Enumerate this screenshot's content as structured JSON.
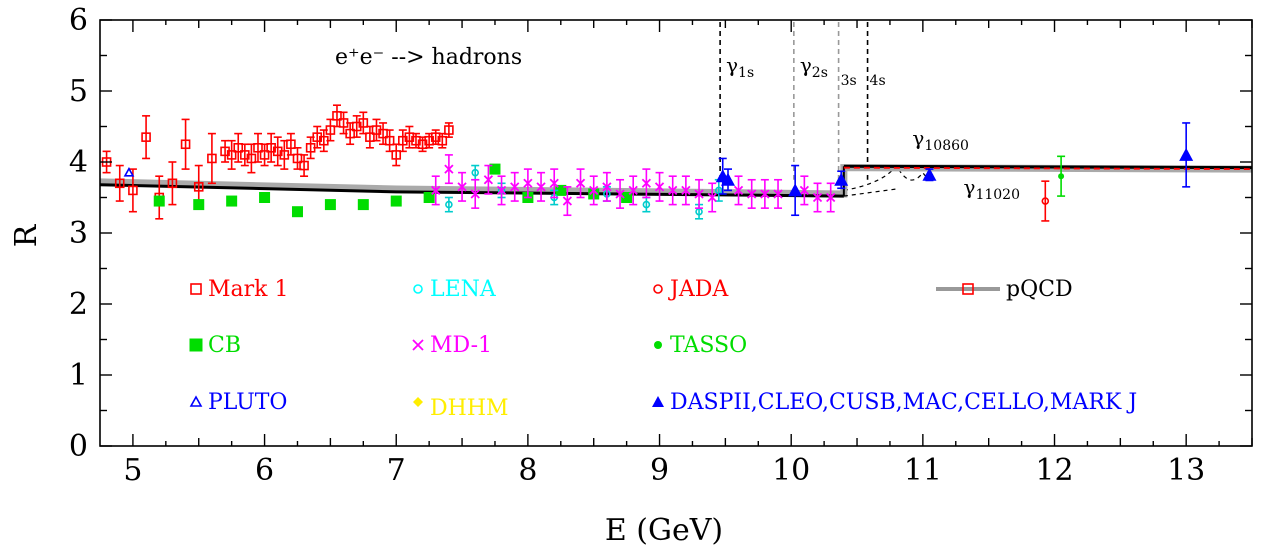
{
  "chart_data": {
    "type": "scatter",
    "title": "",
    "xlabel": "E (GeV)",
    "ylabel": "R",
    "xlim": [
      4.75,
      13.5
    ],
    "ylim": [
      0,
      6
    ],
    "x_ticks": [
      5,
      6,
      7,
      8,
      9,
      10,
      11,
      12,
      13
    ],
    "y_ticks": [
      0,
      1,
      2,
      3,
      4,
      5,
      6
    ],
    "grid": false,
    "legend_placement": "inside-bottom",
    "process_label": "e⁺e⁻  -->  hadrons",
    "annotations": [
      {
        "text": "γ",
        "sub": "1s",
        "x": 9.46
      },
      {
        "text": "γ",
        "sub": "2s",
        "x": 10.02
      },
      {
        "text": "",
        "sub": "3s",
        "x": 10.36
      },
      {
        "text": "",
        "sub": "4s",
        "x": 10.58
      },
      {
        "text": "γ",
        "sub": "10860",
        "x": 10.86
      },
      {
        "text": "γ",
        "sub": "11020",
        "x": 11.02
      }
    ],
    "resonance_lines": [
      {
        "x": 9.46,
        "color": "#000000"
      },
      {
        "x": 10.02,
        "color": "#999999"
      },
      {
        "x": 10.36,
        "color": "#999999"
      },
      {
        "x": 10.58,
        "color": "#000000"
      }
    ],
    "series": [
      {
        "name": "Mark 1",
        "color": "#ff0000",
        "marker": "square-open",
        "points": [
          [
            4.8,
            4.0,
            0.15
          ],
          [
            4.9,
            3.7,
            0.25
          ],
          [
            5.0,
            3.6,
            0.3
          ],
          [
            5.1,
            4.35,
            0.3
          ],
          [
            5.2,
            3.5,
            0.3
          ],
          [
            5.3,
            3.7,
            0.3
          ],
          [
            5.4,
            4.25,
            0.35
          ],
          [
            5.5,
            3.65,
            0.3
          ],
          [
            5.6,
            4.05,
            0.35
          ],
          [
            5.7,
            4.15,
            0.15
          ],
          [
            5.75,
            4.1,
            0.2
          ],
          [
            5.8,
            4.2,
            0.2
          ],
          [
            5.85,
            4.1,
            0.15
          ],
          [
            5.9,
            4.05,
            0.2
          ],
          [
            5.95,
            4.2,
            0.2
          ],
          [
            6.0,
            4.1,
            0.15
          ],
          [
            6.05,
            4.2,
            0.2
          ],
          [
            6.1,
            4.15,
            0.2
          ],
          [
            6.15,
            4.1,
            0.2
          ],
          [
            6.2,
            4.25,
            0.15
          ],
          [
            6.25,
            4.05,
            0.15
          ],
          [
            6.3,
            3.95,
            0.15
          ],
          [
            6.35,
            4.2,
            0.15
          ],
          [
            6.4,
            4.35,
            0.15
          ],
          [
            6.45,
            4.3,
            0.15
          ],
          [
            6.5,
            4.45,
            0.15
          ],
          [
            6.55,
            4.65,
            0.15
          ],
          [
            6.6,
            4.55,
            0.15
          ],
          [
            6.65,
            4.4,
            0.15
          ],
          [
            6.7,
            4.5,
            0.15
          ],
          [
            6.75,
            4.55,
            0.15
          ],
          [
            6.8,
            4.35,
            0.15
          ],
          [
            6.85,
            4.45,
            0.15
          ],
          [
            6.9,
            4.4,
            0.15
          ],
          [
            6.95,
            4.3,
            0.15
          ],
          [
            7.0,
            4.1,
            0.15
          ],
          [
            7.05,
            4.3,
            0.15
          ],
          [
            7.1,
            4.35,
            0.15
          ],
          [
            7.15,
            4.3,
            0.1
          ],
          [
            7.2,
            4.25,
            0.1
          ],
          [
            7.25,
            4.3,
            0.1
          ],
          [
            7.3,
            4.35,
            0.1
          ],
          [
            7.35,
            4.3,
            0.1
          ],
          [
            7.4,
            4.45,
            0.1
          ]
        ]
      },
      {
        "name": "CB",
        "color": "#00dd00",
        "marker": "square-filled",
        "points": [
          [
            5.2,
            3.45,
            0
          ],
          [
            5.5,
            3.4,
            0
          ],
          [
            5.75,
            3.45,
            0
          ],
          [
            6.0,
            3.5,
            0
          ],
          [
            6.25,
            3.3,
            0
          ],
          [
            6.5,
            3.4,
            0
          ],
          [
            6.75,
            3.4,
            0
          ],
          [
            7.0,
            3.45,
            0
          ],
          [
            7.25,
            3.5,
            0
          ],
          [
            7.75,
            3.9,
            0
          ],
          [
            8.0,
            3.5,
            0
          ],
          [
            8.25,
            3.6,
            0
          ],
          [
            8.5,
            3.55,
            0
          ],
          [
            8.75,
            3.5,
            0
          ]
        ]
      },
      {
        "name": "PLUTO",
        "color": "#0000ff",
        "marker": "triangle-open",
        "points": [
          [
            4.97,
            3.85,
            0
          ]
        ]
      },
      {
        "name": "LENA",
        "color": "#00cccc",
        "marker": "circle-open",
        "points": [
          [
            7.4,
            3.4,
            0.1
          ],
          [
            7.6,
            3.85,
            0.1
          ],
          [
            7.8,
            3.6,
            0.1
          ],
          [
            8.2,
            3.5,
            0.1
          ],
          [
            8.6,
            3.55,
            0.1
          ],
          [
            8.9,
            3.4,
            0.1
          ],
          [
            9.3,
            3.3,
            0.1
          ],
          [
            9.45,
            3.6,
            0.15
          ]
        ]
      },
      {
        "name": "MD-1",
        "color": "#ff00ff",
        "marker": "x",
        "points": [
          [
            7.3,
            3.6,
            0.2
          ],
          [
            7.4,
            3.9,
            0.2
          ],
          [
            7.5,
            3.65,
            0.2
          ],
          [
            7.6,
            3.55,
            0.2
          ],
          [
            7.7,
            3.75,
            0.2
          ],
          [
            7.8,
            3.6,
            0.2
          ],
          [
            7.9,
            3.65,
            0.2
          ],
          [
            8.0,
            3.7,
            0.2
          ],
          [
            8.1,
            3.65,
            0.2
          ],
          [
            8.2,
            3.7,
            0.2
          ],
          [
            8.3,
            3.45,
            0.2
          ],
          [
            8.4,
            3.7,
            0.2
          ],
          [
            8.5,
            3.6,
            0.2
          ],
          [
            8.6,
            3.65,
            0.2
          ],
          [
            8.7,
            3.55,
            0.2
          ],
          [
            8.8,
            3.6,
            0.2
          ],
          [
            8.9,
            3.7,
            0.2
          ],
          [
            9.0,
            3.65,
            0.2
          ],
          [
            9.1,
            3.6,
            0.2
          ],
          [
            9.2,
            3.6,
            0.2
          ],
          [
            9.3,
            3.55,
            0.2
          ],
          [
            9.4,
            3.5,
            0.2
          ],
          [
            9.6,
            3.6,
            0.2
          ],
          [
            9.7,
            3.55,
            0.2
          ],
          [
            9.8,
            3.55,
            0.2
          ],
          [
            9.9,
            3.55,
            0.2
          ],
          [
            10.1,
            3.6,
            0.2
          ],
          [
            10.2,
            3.5,
            0.2
          ],
          [
            10.3,
            3.5,
            0.2
          ]
        ]
      },
      {
        "name": "DHHM",
        "color": "#ffee00",
        "marker": "diamond-filled",
        "points": []
      },
      {
        "name": "JADA",
        "color": "#ff0000",
        "marker": "circle-open",
        "points": [
          [
            11.93,
            3.45,
            0.28
          ]
        ]
      },
      {
        "name": "TASSO",
        "color": "#00dd00",
        "marker": "circle-filled",
        "points": [
          [
            12.05,
            3.8,
            0.28
          ]
        ]
      },
      {
        "name": "DASPII,CLEO,CUSB,MAC,CELLO,MARK J",
        "color": "#0000ff",
        "marker": "triangle-filled",
        "points": [
          [
            9.48,
            3.8,
            0.25
          ],
          [
            9.52,
            3.75,
            0.15
          ],
          [
            10.03,
            3.6,
            0.35
          ],
          [
            10.38,
            3.75,
            0.12
          ],
          [
            11.05,
            3.82,
            0.08
          ],
          [
            13.0,
            4.1,
            0.45
          ]
        ]
      },
      {
        "name": "pQCD",
        "color": "#999999",
        "marker": "line-square",
        "points": [
          [
            4.75,
            3.72,
            0
          ],
          [
            7.0,
            3.62,
            0
          ],
          [
            10.4,
            3.55,
            0
          ],
          [
            10.4,
            3.92,
            0
          ],
          [
            13.5,
            3.9,
            0
          ]
        ]
      }
    ],
    "black_curve": [
      [
        4.75,
        3.68
      ],
      [
        7.0,
        3.58
      ],
      [
        10.4,
        3.52
      ]
    ],
    "black_curve_upper": [
      [
        10.4,
        3.94
      ],
      [
        13.5,
        3.92
      ]
    ],
    "red_dash_upper": [
      [
        10.4,
        3.92
      ],
      [
        13.5,
        3.9
      ]
    ],
    "legend": [
      {
        "label": "Mark 1",
        "color": "#ff0000",
        "marker": "square-open"
      },
      {
        "label": "LENA",
        "color": "#00ffff",
        "marker": "circle-open"
      },
      {
        "label": "JADA",
        "color": "#ff0000",
        "marker": "circle-open"
      },
      {
        "label": "pQCD",
        "color": "#000000",
        "marker": "line-square"
      },
      {
        "label": "CB",
        "color": "#00dd00",
        "marker": "square-filled"
      },
      {
        "label": "MD-1",
        "color": "#ff00ff",
        "marker": "x"
      },
      {
        "label": "TASSO",
        "color": "#00dd00",
        "marker": "circle-filled"
      },
      {
        "label": "PLUTO",
        "color": "#0000ff",
        "marker": "triangle-open"
      },
      {
        "label": "DHHM",
        "color": "#ffee00",
        "marker": "diamond-filled"
      },
      {
        "label": "DASPII,CLEO,CUSB,MAC,CELLO,MARK J",
        "color": "#0000ff",
        "marker": "triangle-filled"
      }
    ]
  }
}
